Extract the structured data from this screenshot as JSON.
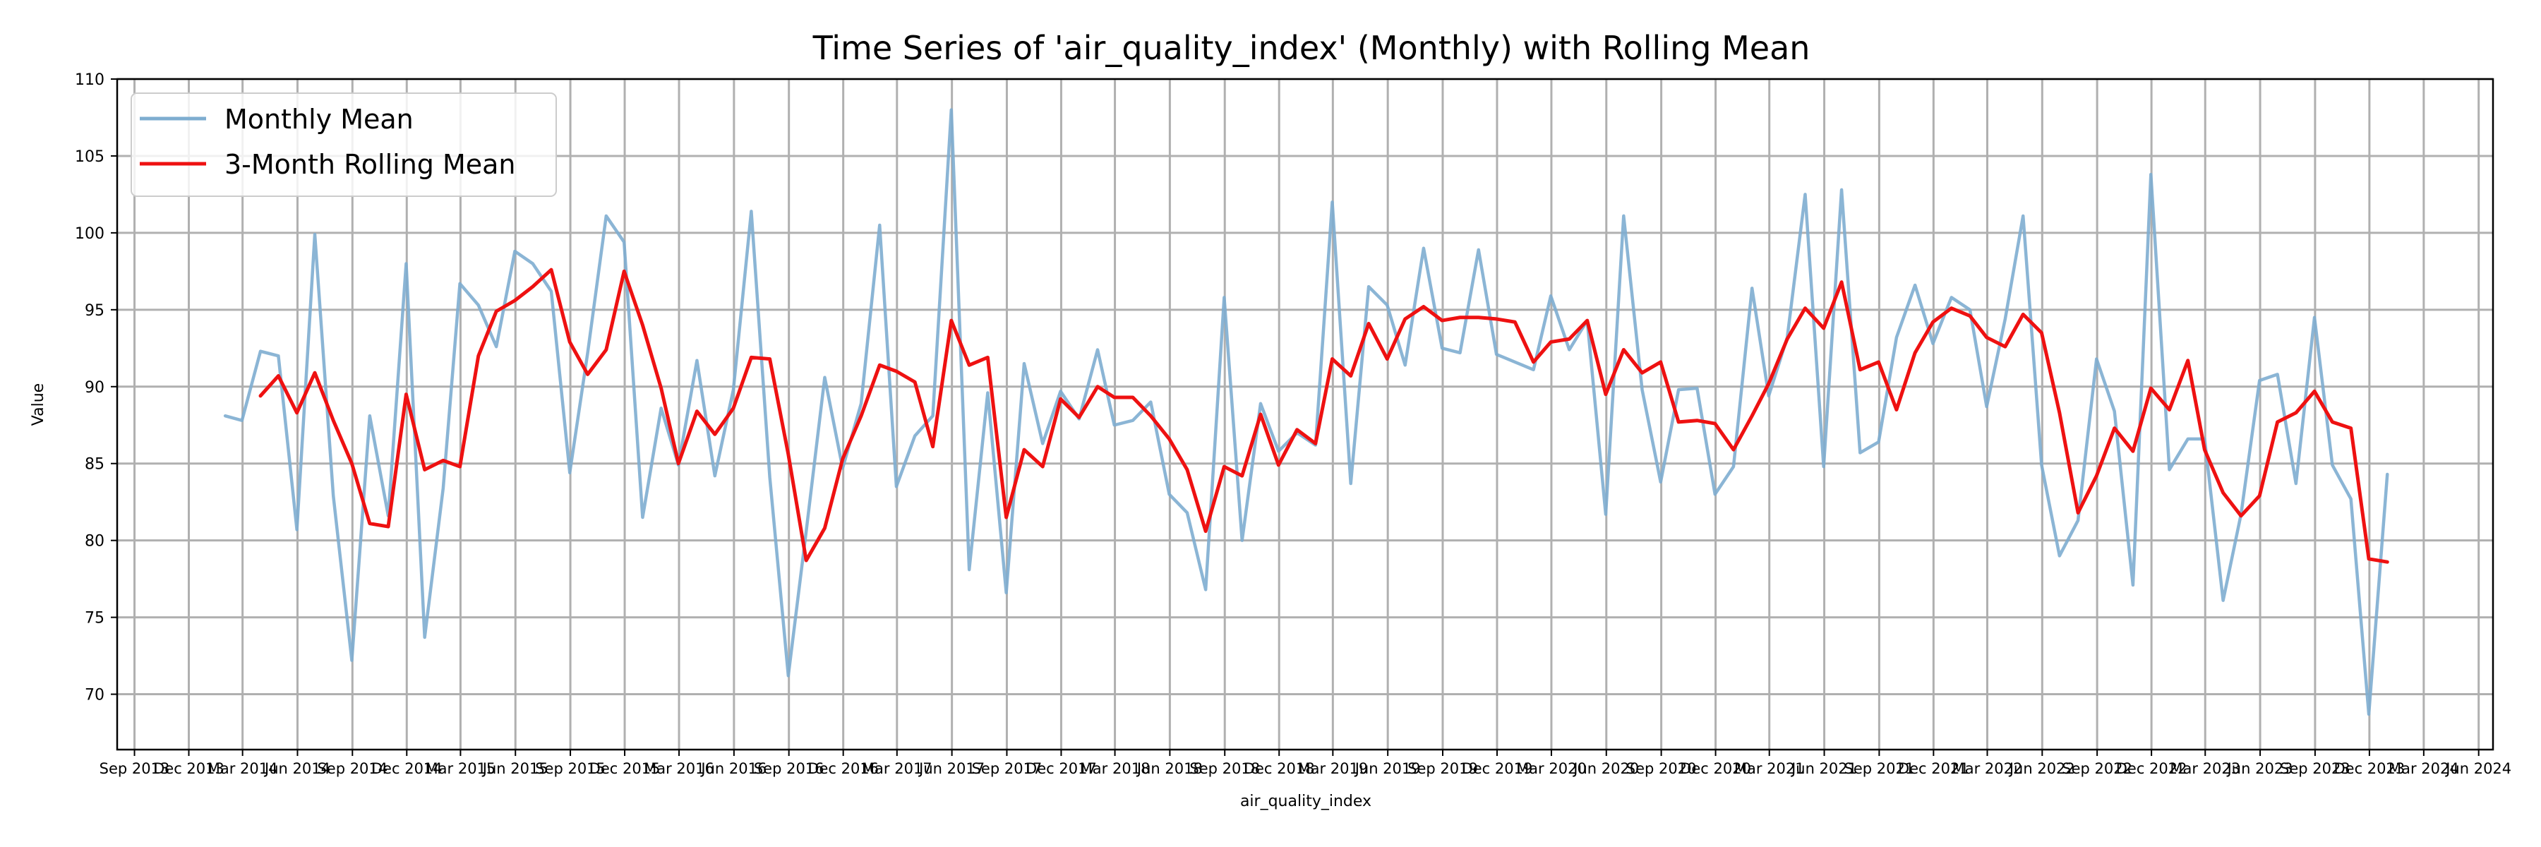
{
  "chart_data": {
    "type": "line",
    "title": "Time Series of 'air_quality_index' (Monthly) with Rolling Mean",
    "xlabel": "air_quality_index",
    "ylabel": "Value",
    "ylim": [
      66.4,
      110
    ],
    "xlim": [
      "2013-08-03",
      "2024-06-25"
    ],
    "grid": true,
    "legend_position": "top-left",
    "x_ticks": [
      {
        "label": "Sep 2013",
        "date": "2013-09-01"
      },
      {
        "label": "Dec 2013",
        "date": "2013-12-01"
      },
      {
        "label": "Mar 2014",
        "date": "2014-03-01"
      },
      {
        "label": "Jun 2014",
        "date": "2014-06-01"
      },
      {
        "label": "Sep 2014",
        "date": "2014-09-01"
      },
      {
        "label": "Dec 2014",
        "date": "2014-12-01"
      },
      {
        "label": "Mar 2015",
        "date": "2015-03-01"
      },
      {
        "label": "Jun 2015",
        "date": "2015-06-01"
      },
      {
        "label": "Sep 2015",
        "date": "2015-09-01"
      },
      {
        "label": "Dec 2015",
        "date": "2015-12-01"
      },
      {
        "label": "Mar 2016",
        "date": "2016-03-01"
      },
      {
        "label": "Jun 2016",
        "date": "2016-06-01"
      },
      {
        "label": "Sep 2016",
        "date": "2016-09-01"
      },
      {
        "label": "Dec 2016",
        "date": "2016-12-01"
      },
      {
        "label": "Mar 2017",
        "date": "2017-03-01"
      },
      {
        "label": "Jun 2017",
        "date": "2017-06-01"
      },
      {
        "label": "Sep 2017",
        "date": "2017-09-01"
      },
      {
        "label": "Dec 2017",
        "date": "2017-12-01"
      },
      {
        "label": "Mar 2018",
        "date": "2018-03-01"
      },
      {
        "label": "Jun 2018",
        "date": "2018-06-01"
      },
      {
        "label": "Sep 2018",
        "date": "2018-09-01"
      },
      {
        "label": "Dec 2018",
        "date": "2018-12-01"
      },
      {
        "label": "Mar 2019",
        "date": "2019-03-01"
      },
      {
        "label": "Jun 2019",
        "date": "2019-06-01"
      },
      {
        "label": "Sep 2019",
        "date": "2019-09-01"
      },
      {
        "label": "Dec 2019",
        "date": "2019-12-01"
      },
      {
        "label": "Mar 2020",
        "date": "2020-03-01"
      },
      {
        "label": "Jun 2020",
        "date": "2020-06-01"
      },
      {
        "label": "Sep 2020",
        "date": "2020-09-01"
      },
      {
        "label": "Dec 2020",
        "date": "2020-12-01"
      },
      {
        "label": "Mar 2021",
        "date": "2021-03-01"
      },
      {
        "label": "Jun 2021",
        "date": "2021-06-01"
      },
      {
        "label": "Sep 2021",
        "date": "2021-09-01"
      },
      {
        "label": "Dec 2021",
        "date": "2021-12-01"
      },
      {
        "label": "Mar 2022",
        "date": "2022-03-01"
      },
      {
        "label": "Jun 2022",
        "date": "2022-06-01"
      },
      {
        "label": "Sep 2022",
        "date": "2022-09-01"
      },
      {
        "label": "Dec 2022",
        "date": "2022-12-01"
      },
      {
        "label": "Mar 2023",
        "date": "2023-03-01"
      },
      {
        "label": "Jun 2023",
        "date": "2023-06-01"
      },
      {
        "label": "Sep 2023",
        "date": "2023-09-01"
      },
      {
        "label": "Dec 2023",
        "date": "2023-12-01"
      },
      {
        "label": "Mar 2024",
        "date": "2024-03-01"
      },
      {
        "label": "Jun 2024",
        "date": "2024-06-01"
      }
    ],
    "y_ticks": [
      {
        "label": "70",
        "value": 70
      },
      {
        "label": "75",
        "value": 75
      },
      {
        "label": "80",
        "value": 80
      },
      {
        "label": "85",
        "value": 85
      },
      {
        "label": "90",
        "value": 90
      },
      {
        "label": "95",
        "value": 95
      },
      {
        "label": "100",
        "value": 100
      },
      {
        "label": "105",
        "value": 105
      },
      {
        "label": "110",
        "value": 110
      }
    ],
    "x_dates": [
      "2014-01-31",
      "2014-02-28",
      "2014-03-31",
      "2014-04-30",
      "2014-05-31",
      "2014-06-30",
      "2014-07-31",
      "2014-08-31",
      "2014-09-30",
      "2014-10-31",
      "2014-11-30",
      "2014-12-31",
      "2015-01-31",
      "2015-02-28",
      "2015-03-31",
      "2015-04-30",
      "2015-05-31",
      "2015-06-30",
      "2015-07-31",
      "2015-08-31",
      "2015-09-30",
      "2015-10-31",
      "2015-11-30",
      "2015-12-31",
      "2016-01-31",
      "2016-02-29",
      "2016-03-31",
      "2016-04-30",
      "2016-05-31",
      "2016-06-30",
      "2016-07-31",
      "2016-08-31",
      "2016-09-30",
      "2016-10-31",
      "2016-11-30",
      "2016-12-31",
      "2017-01-31",
      "2017-02-28",
      "2017-03-31",
      "2017-04-30",
      "2017-05-31",
      "2017-06-30",
      "2017-07-31",
      "2017-08-31",
      "2017-09-30",
      "2017-10-31",
      "2017-11-30",
      "2017-12-31",
      "2018-01-31",
      "2018-02-28",
      "2018-03-31",
      "2018-04-30",
      "2018-05-31",
      "2018-06-30",
      "2018-07-31",
      "2018-08-31",
      "2018-09-30",
      "2018-10-31",
      "2018-11-30",
      "2018-12-31",
      "2019-01-31",
      "2019-02-28",
      "2019-03-31",
      "2019-04-30",
      "2019-05-31",
      "2019-06-30",
      "2019-07-31",
      "2019-08-31",
      "2019-09-30",
      "2019-10-31",
      "2019-11-30",
      "2019-12-31",
      "2020-01-31",
      "2020-02-29",
      "2020-03-31",
      "2020-04-30",
      "2020-05-31",
      "2020-06-30",
      "2020-07-31",
      "2020-08-31",
      "2020-09-30",
      "2020-10-31",
      "2020-11-30",
      "2020-12-31",
      "2021-01-31",
      "2021-02-28",
      "2021-03-31",
      "2021-04-30",
      "2021-05-31",
      "2021-06-30",
      "2021-07-31",
      "2021-08-31",
      "2021-09-30",
      "2021-10-31",
      "2021-11-30",
      "2021-12-31",
      "2022-01-31",
      "2022-02-28",
      "2022-03-31",
      "2022-04-30",
      "2022-05-31",
      "2022-06-30",
      "2022-07-31",
      "2022-08-31",
      "2022-09-30",
      "2022-10-31",
      "2022-11-30",
      "2022-12-31",
      "2023-01-31",
      "2023-02-28",
      "2023-03-31",
      "2023-04-30",
      "2023-05-31",
      "2023-06-30",
      "2023-07-31",
      "2023-08-31",
      "2023-09-30",
      "2023-10-31",
      "2023-11-30",
      "2023-12-31"
    ],
    "series": [
      {
        "name": "Monthly Mean",
        "color": "#7eadd0",
        "values": [
          88.1,
          87.8,
          92.3,
          92.0,
          80.7,
          99.9,
          82.9,
          72.2,
          88.1,
          81.6,
          98.0,
          73.7,
          83.4,
          96.7,
          95.3,
          92.6,
          98.8,
          98.0,
          96.2,
          84.4,
          92.2,
          101.1,
          99.4,
          81.5,
          88.6,
          84.9,
          91.7,
          84.2,
          89.8,
          101.4,
          84.1,
          71.2,
          80.6,
          90.6,
          84.7,
          88.9,
          100.5,
          83.5,
          86.8,
          88.1,
          108.0,
          78.1,
          89.6,
          76.6,
          91.5,
          86.3,
          89.7,
          87.9,
          92.4,
          87.5,
          87.8,
          89.0,
          83.0,
          81.8,
          76.8,
          95.8,
          80.0,
          88.9,
          85.8,
          87.0,
          86.2,
          102.0,
          83.7,
          96.5,
          95.3,
          91.4,
          99.0,
          92.5,
          92.2,
          98.9,
          92.1,
          91.6,
          91.1,
          95.9,
          92.4,
          94.3,
          81.7,
          101.1,
          89.8,
          83.8,
          89.8,
          89.9,
          83.0,
          84.8,
          96.4,
          89.4,
          93.2,
          102.5,
          84.8,
          102.8,
          85.7,
          86.4,
          93.2,
          96.6,
          92.8,
          95.8,
          95.0,
          88.7,
          94.4,
          101.1,
          84.9,
          79.0,
          81.3,
          91.8,
          88.4,
          77.1,
          103.8,
          84.6,
          86.6,
          86.6,
          76.1,
          81.7,
          90.4,
          90.8,
          83.7,
          94.5,
          84.9,
          82.7,
          68.7,
          84.3
        ]
      },
      {
        "name": "3-Month Rolling Mean",
        "color": "#ee1111",
        "values": [
          null,
          null,
          89.4,
          90.7,
          88.3,
          90.9,
          87.8,
          85.0,
          81.1,
          80.9,
          89.5,
          84.6,
          85.2,
          84.8,
          92.0,
          94.9,
          95.6,
          96.5,
          97.6,
          92.9,
          90.8,
          92.4,
          97.5,
          94.0,
          89.9,
          85.0,
          88.4,
          86.9,
          88.6,
          91.9,
          91.8,
          85.6,
          78.7,
          80.8,
          85.3,
          88.1,
          91.4,
          91.0,
          90.3,
          86.1,
          94.3,
          91.4,
          91.9,
          81.5,
          85.9,
          84.8,
          89.2,
          88.0,
          90.0,
          89.3,
          89.3,
          88.1,
          86.6,
          84.6,
          80.6,
          84.8,
          84.2,
          88.2,
          84.9,
          87.2,
          86.3,
          91.8,
          90.7,
          94.1,
          91.8,
          94.4,
          95.2,
          94.3,
          94.5,
          94.5,
          94.4,
          94.2,
          91.6,
          92.9,
          93.1,
          94.3,
          89.5,
          92.4,
          90.9,
          91.6,
          87.7,
          87.8,
          87.6,
          85.9,
          88.1,
          90.2,
          93.1,
          95.1,
          93.8,
          96.8,
          91.1,
          91.6,
          88.5,
          92.2,
          94.2,
          95.1,
          94.6,
          93.2,
          92.6,
          94.7,
          93.5,
          88.3,
          81.8,
          84.2,
          87.3,
          85.8,
          89.9,
          88.5,
          91.7,
          85.9,
          83.1,
          81.6,
          82.9,
          87.7,
          88.3,
          89.7,
          87.7,
          87.3,
          78.8,
          78.6
        ]
      }
    ]
  }
}
